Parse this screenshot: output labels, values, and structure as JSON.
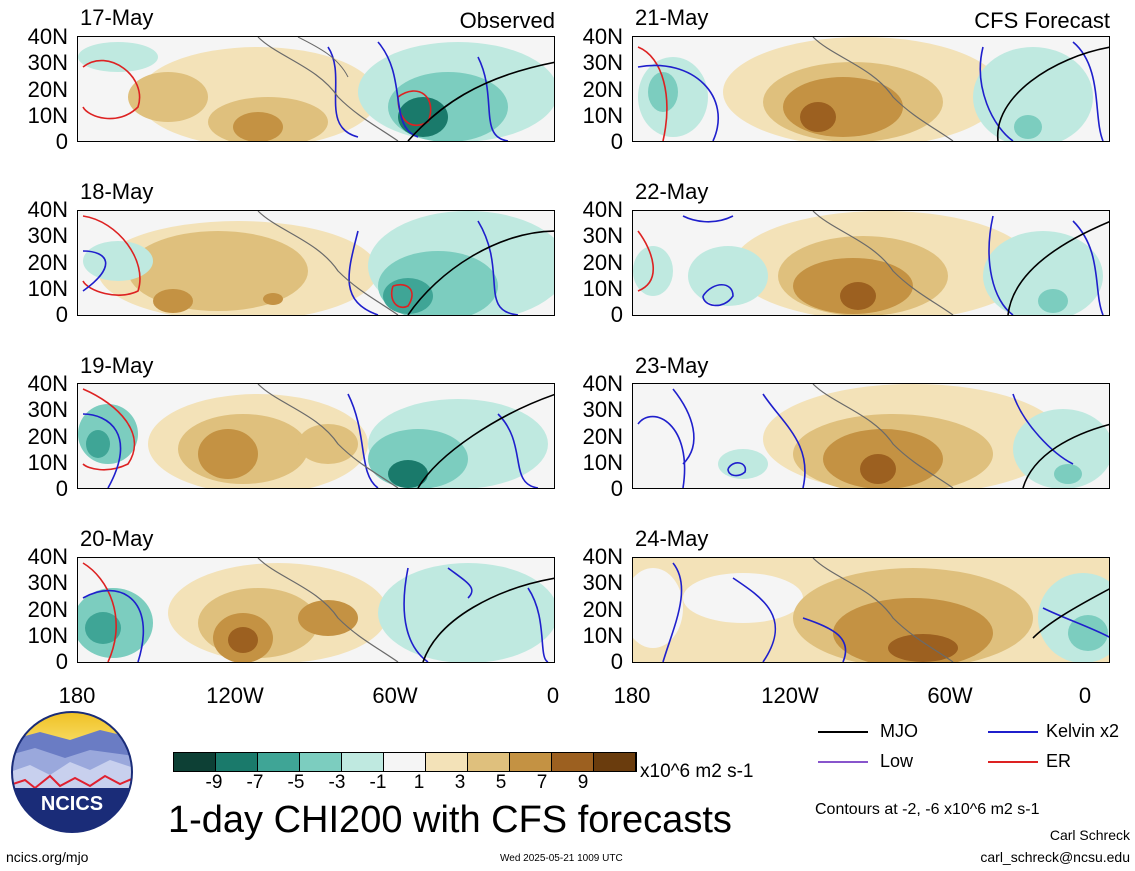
{
  "header": {
    "observed_label": "Observed",
    "forecast_label": "CFS Forecast"
  },
  "panels": {
    "observed": [
      {
        "date": "17-May"
      },
      {
        "date": "18-May"
      },
      {
        "date": "19-May"
      },
      {
        "date": "20-May"
      }
    ],
    "forecast": [
      {
        "date": "21-May"
      },
      {
        "date": "22-May"
      },
      {
        "date": "23-May"
      },
      {
        "date": "24-May"
      }
    ]
  },
  "axes": {
    "lat_labels": [
      "40N",
      "30N",
      "20N",
      "10N",
      "0"
    ],
    "lon_labels": [
      "180",
      "120W",
      "60W",
      "0"
    ]
  },
  "colorbar": {
    "ticks": [
      "-9",
      "-7",
      "-5",
      "-3",
      "-1",
      "1",
      "3",
      "5",
      "7",
      "9"
    ],
    "unit": "x10^6 m2 s-1",
    "colors": [
      "#0d4035",
      "#1a7a6b",
      "#3fa596",
      "#7ccdbf",
      "#bfe9e0",
      "#f5f5f5",
      "#f3e2b8",
      "#dfc07d",
      "#c49243",
      "#9c6020",
      "#6a3c0d"
    ]
  },
  "title": "1-day CHI200 with CFS forecasts",
  "key": {
    "items": [
      {
        "label": "MJO",
        "color": "#000000"
      },
      {
        "label": "Kelvin x2",
        "color": "#1f1fcc"
      },
      {
        "label": "Low",
        "color": "#8855cc"
      },
      {
        "label": "ER",
        "color": "#dd2222"
      }
    ],
    "contour_note": "Contours at -2, -6 x10^6 m2 s-1"
  },
  "logo": {
    "text": "NCICS"
  },
  "footer": {
    "url": "ncics.org/mjo",
    "timestamp": "Wed 2025-05-21 1009 UTC",
    "author": "Carl Schreck",
    "email": "carl_schreck@ncsu.edu"
  }
}
